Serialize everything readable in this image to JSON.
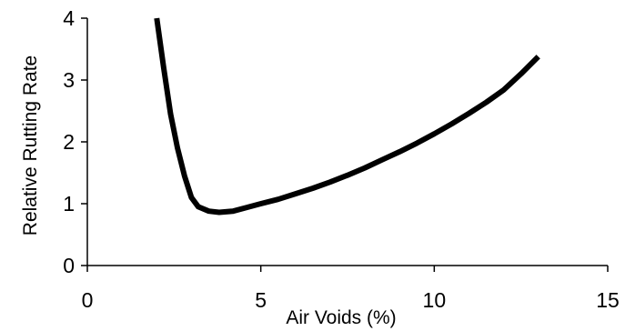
{
  "chart_data": {
    "type": "line",
    "title": "",
    "xlabel": "Air Voids (%)",
    "ylabel": "Relative Rutting Rate",
    "xlim": [
      0,
      15
    ],
    "ylim": [
      0,
      4
    ],
    "xticks": [
      0,
      5,
      10,
      15
    ],
    "yticks": [
      0,
      1,
      2,
      3,
      4
    ],
    "grid": false,
    "legend": "none",
    "series": [
      {
        "color": "#000000",
        "x": [
          2.0,
          2.2,
          2.4,
          2.6,
          2.8,
          3.0,
          3.2,
          3.5,
          3.8,
          4.2,
          4.6,
          5.0,
          5.5,
          6.0,
          6.5,
          7.0,
          7.5,
          8.0,
          8.5,
          9.0,
          9.5,
          10.0,
          10.5,
          11.0,
          11.5,
          12.0,
          12.5,
          13.0
        ],
        "y": [
          4.0,
          3.2,
          2.45,
          1.9,
          1.45,
          1.1,
          0.95,
          0.88,
          0.86,
          0.88,
          0.94,
          1.0,
          1.07,
          1.16,
          1.25,
          1.35,
          1.46,
          1.58,
          1.71,
          1.84,
          1.98,
          2.13,
          2.29,
          2.46,
          2.64,
          2.84,
          3.1,
          3.38
        ]
      }
    ]
  }
}
